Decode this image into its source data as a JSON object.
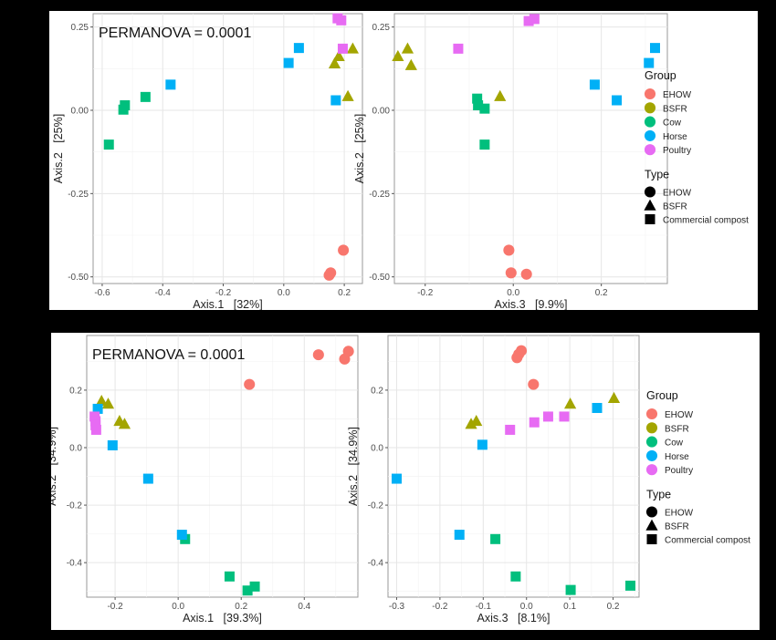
{
  "legend": {
    "group_title": "Group",
    "groups": [
      {
        "name": "EHOW",
        "color": "#F8766D"
      },
      {
        "name": "BSFR",
        "color": "#A3A500"
      },
      {
        "name": "Cow",
        "color": "#00BF7D"
      },
      {
        "name": "Horse",
        "color": "#00B0F6"
      },
      {
        "name": "Poultry",
        "color": "#E76BF3"
      }
    ],
    "type_title": "Type",
    "types": [
      {
        "name": "EHOW",
        "shape": "circle"
      },
      {
        "name": "BSFR",
        "shape": "triangle"
      },
      {
        "name": "Commercial compost",
        "shape": "square"
      }
    ]
  },
  "chart_data": [
    {
      "type": "scatter",
      "annotation": "PERMANOVA = 0.0001",
      "xlabel": "Axis.1   [32%]",
      "ylabel": "Axis.2   [25%]",
      "xlim": [
        -0.63,
        0.26
      ],
      "ylim": [
        -0.52,
        0.29
      ],
      "xticks": [
        -0.6,
        -0.4,
        -0.2,
        0.0,
        0.2
      ],
      "xtick_labels": [
        "-0.6",
        "-0.4",
        "-0.2",
        "0.0",
        "0.2"
      ],
      "yticks": [
        -0.5,
        -0.25,
        0.0,
        0.25
      ],
      "ytick_labels": [
        "-0.50",
        "-0.25",
        "0.00",
        "0.25"
      ],
      "grid": true,
      "points": [
        {
          "x": 0.155,
          "y": -0.488,
          "group": "EHOW",
          "shape": "circle"
        },
        {
          "x": 0.15,
          "y": -0.495,
          "group": "EHOW",
          "shape": "circle"
        },
        {
          "x": 0.197,
          "y": -0.42,
          "group": "EHOW",
          "shape": "circle"
        },
        {
          "x": 0.182,
          "y": 0.162,
          "group": "BSFR",
          "shape": "triangle"
        },
        {
          "x": 0.168,
          "y": 0.14,
          "group": "BSFR",
          "shape": "triangle"
        },
        {
          "x": 0.228,
          "y": 0.185,
          "group": "BSFR",
          "shape": "triangle"
        },
        {
          "x": 0.212,
          "y": 0.042,
          "group": "BSFR",
          "shape": "triangle"
        },
        {
          "x": -0.525,
          "y": 0.015,
          "group": "Cow",
          "shape": "square"
        },
        {
          "x": -0.53,
          "y": 0.002,
          "group": "Cow",
          "shape": "square"
        },
        {
          "x": -0.457,
          "y": 0.04,
          "group": "Cow",
          "shape": "square"
        },
        {
          "x": -0.578,
          "y": -0.103,
          "group": "Cow",
          "shape": "square"
        },
        {
          "x": -0.374,
          "y": 0.077,
          "group": "Horse",
          "shape": "square"
        },
        {
          "x": 0.05,
          "y": 0.187,
          "group": "Horse",
          "shape": "square"
        },
        {
          "x": 0.016,
          "y": 0.142,
          "group": "Horse",
          "shape": "square"
        },
        {
          "x": 0.172,
          "y": 0.03,
          "group": "Horse",
          "shape": "square"
        },
        {
          "x": 0.178,
          "y": 0.276,
          "group": "Poultry",
          "shape": "square"
        },
        {
          "x": 0.19,
          "y": 0.27,
          "group": "Poultry",
          "shape": "square"
        },
        {
          "x": 0.195,
          "y": 0.185,
          "group": "Poultry",
          "shape": "square"
        }
      ]
    },
    {
      "type": "scatter",
      "annotation": "",
      "xlabel": "Axis.3   [9.9%]",
      "ylabel": "Axis.2   [25%]",
      "xlim": [
        -0.27,
        0.35
      ],
      "ylim": [
        -0.52,
        0.29
      ],
      "xticks": [
        -0.2,
        0.0,
        0.2
      ],
      "xtick_labels": [
        "-0.2",
        "0.0",
        "0.2"
      ],
      "yticks": [
        -0.5,
        -0.25,
        0.0,
        0.25
      ],
      "ytick_labels": [
        "-0.50",
        "-0.25",
        "0.00",
        "0.25"
      ],
      "grid": true,
      "points": [
        {
          "x": -0.01,
          "y": -0.42,
          "group": "EHOW",
          "shape": "circle"
        },
        {
          "x": -0.005,
          "y": -0.488,
          "group": "EHOW",
          "shape": "circle"
        },
        {
          "x": 0.03,
          "y": -0.492,
          "group": "EHOW",
          "shape": "circle"
        },
        {
          "x": -0.262,
          "y": 0.162,
          "group": "BSFR",
          "shape": "triangle"
        },
        {
          "x": -0.24,
          "y": 0.185,
          "group": "BSFR",
          "shape": "triangle"
        },
        {
          "x": -0.232,
          "y": 0.135,
          "group": "BSFR",
          "shape": "triangle"
        },
        {
          "x": -0.03,
          "y": 0.042,
          "group": "BSFR",
          "shape": "triangle"
        },
        {
          "x": -0.082,
          "y": 0.035,
          "group": "Cow",
          "shape": "square"
        },
        {
          "x": -0.08,
          "y": 0.015,
          "group": "Cow",
          "shape": "square"
        },
        {
          "x": -0.065,
          "y": 0.005,
          "group": "Cow",
          "shape": "square"
        },
        {
          "x": -0.065,
          "y": -0.103,
          "group": "Cow",
          "shape": "square"
        },
        {
          "x": 0.185,
          "y": 0.077,
          "group": "Horse",
          "shape": "square"
        },
        {
          "x": 0.235,
          "y": 0.03,
          "group": "Horse",
          "shape": "square"
        },
        {
          "x": 0.308,
          "y": 0.142,
          "group": "Horse",
          "shape": "square"
        },
        {
          "x": 0.322,
          "y": 0.187,
          "group": "Horse",
          "shape": "square"
        },
        {
          "x": -0.125,
          "y": 0.185,
          "group": "Poultry",
          "shape": "square"
        },
        {
          "x": 0.035,
          "y": 0.268,
          "group": "Poultry",
          "shape": "square"
        },
        {
          "x": 0.048,
          "y": 0.274,
          "group": "Poultry",
          "shape": "square"
        }
      ]
    },
    {
      "type": "scatter",
      "annotation": "PERMANOVA = 0.0001",
      "xlabel": "Axis.1   [39.3%]",
      "ylabel": "Axis.2   [34.9%]",
      "xlim": [
        -0.29,
        0.57
      ],
      "ylim": [
        -0.52,
        0.39
      ],
      "xticks": [
        -0.2,
        0.0,
        0.2,
        0.4
      ],
      "xtick_labels": [
        "-0.2",
        "0.0",
        "0.2",
        "0.4"
      ],
      "yticks": [
        -0.4,
        -0.2,
        0.0,
        0.2
      ],
      "ytick_labels": [
        "-0.4",
        "-0.2",
        "0.0",
        "0.2"
      ],
      "grid": true,
      "points": [
        {
          "x": 0.445,
          "y": 0.323,
          "group": "EHOW",
          "shape": "circle"
        },
        {
          "x": 0.528,
          "y": 0.308,
          "group": "EHOW",
          "shape": "circle"
        },
        {
          "x": 0.54,
          "y": 0.335,
          "group": "EHOW",
          "shape": "circle"
        },
        {
          "x": 0.226,
          "y": 0.22,
          "group": "EHOW",
          "shape": "circle"
        },
        {
          "x": -0.243,
          "y": 0.162,
          "group": "BSFR",
          "shape": "triangle"
        },
        {
          "x": -0.222,
          "y": 0.152,
          "group": "BSFR",
          "shape": "triangle"
        },
        {
          "x": -0.186,
          "y": 0.092,
          "group": "BSFR",
          "shape": "triangle"
        },
        {
          "x": -0.17,
          "y": 0.082,
          "group": "BSFR",
          "shape": "triangle"
        },
        {
          "x": 0.022,
          "y": -0.318,
          "group": "Cow",
          "shape": "square"
        },
        {
          "x": 0.163,
          "y": -0.448,
          "group": "Cow",
          "shape": "square"
        },
        {
          "x": 0.22,
          "y": -0.497,
          "group": "Cow",
          "shape": "square"
        },
        {
          "x": 0.243,
          "y": -0.483,
          "group": "Cow",
          "shape": "square"
        },
        {
          "x": -0.255,
          "y": 0.135,
          "group": "Horse",
          "shape": "square"
        },
        {
          "x": -0.208,
          "y": 0.008,
          "group": "Horse",
          "shape": "square"
        },
        {
          "x": -0.095,
          "y": -0.108,
          "group": "Horse",
          "shape": "square"
        },
        {
          "x": 0.012,
          "y": -0.303,
          "group": "Horse",
          "shape": "square"
        },
        {
          "x": -0.265,
          "y": 0.108,
          "group": "Poultry",
          "shape": "square"
        },
        {
          "x": -0.262,
          "y": 0.092,
          "group": "Poultry",
          "shape": "square"
        },
        {
          "x": -0.262,
          "y": 0.078,
          "group": "Poultry",
          "shape": "square"
        },
        {
          "x": -0.26,
          "y": 0.062,
          "group": "Poultry",
          "shape": "square"
        }
      ]
    },
    {
      "type": "scatter",
      "annotation": "",
      "xlabel": "Axis.3   [8.1%]",
      "ylabel": "Axis.2   [34.9%]",
      "xlim": [
        -0.32,
        0.26
      ],
      "ylim": [
        -0.52,
        0.39
      ],
      "xticks": [
        -0.3,
        -0.2,
        -0.1,
        0.0,
        0.1,
        0.2
      ],
      "xtick_labels": [
        "-0.3",
        "-0.2",
        "-0.1",
        "0.0",
        "0.1",
        "0.2"
      ],
      "yticks": [
        -0.4,
        -0.2,
        0.0,
        0.2
      ],
      "ytick_labels": [
        "-0.4",
        "-0.2",
        "0.0",
        "0.2"
      ],
      "grid": true,
      "points": [
        {
          "x": -0.022,
          "y": 0.313,
          "group": "EHOW",
          "shape": "circle"
        },
        {
          "x": -0.018,
          "y": 0.325,
          "group": "EHOW",
          "shape": "circle"
        },
        {
          "x": -0.012,
          "y": 0.337,
          "group": "EHOW",
          "shape": "circle"
        },
        {
          "x": 0.016,
          "y": 0.22,
          "group": "EHOW",
          "shape": "circle"
        },
        {
          "x": -0.128,
          "y": 0.082,
          "group": "BSFR",
          "shape": "triangle"
        },
        {
          "x": -0.116,
          "y": 0.092,
          "group": "BSFR",
          "shape": "triangle"
        },
        {
          "x": 0.101,
          "y": 0.152,
          "group": "BSFR",
          "shape": "triangle"
        },
        {
          "x": 0.202,
          "y": 0.172,
          "group": "BSFR",
          "shape": "triangle"
        },
        {
          "x": -0.072,
          "y": -0.318,
          "group": "Cow",
          "shape": "square"
        },
        {
          "x": -0.025,
          "y": -0.448,
          "group": "Cow",
          "shape": "square"
        },
        {
          "x": 0.102,
          "y": -0.495,
          "group": "Cow",
          "shape": "square"
        },
        {
          "x": 0.24,
          "y": -0.48,
          "group": "Cow",
          "shape": "square"
        },
        {
          "x": -0.3,
          "y": -0.108,
          "group": "Horse",
          "shape": "square"
        },
        {
          "x": -0.155,
          "y": -0.303,
          "group": "Horse",
          "shape": "square"
        },
        {
          "x": -0.102,
          "y": 0.01,
          "group": "Horse",
          "shape": "square"
        },
        {
          "x": 0.163,
          "y": 0.138,
          "group": "Horse",
          "shape": "square"
        },
        {
          "x": -0.038,
          "y": 0.062,
          "group": "Poultry",
          "shape": "square"
        },
        {
          "x": 0.018,
          "y": 0.088,
          "group": "Poultry",
          "shape": "square"
        },
        {
          "x": 0.05,
          "y": 0.108,
          "group": "Poultry",
          "shape": "square"
        },
        {
          "x": 0.087,
          "y": 0.108,
          "group": "Poultry",
          "shape": "square"
        }
      ]
    }
  ]
}
